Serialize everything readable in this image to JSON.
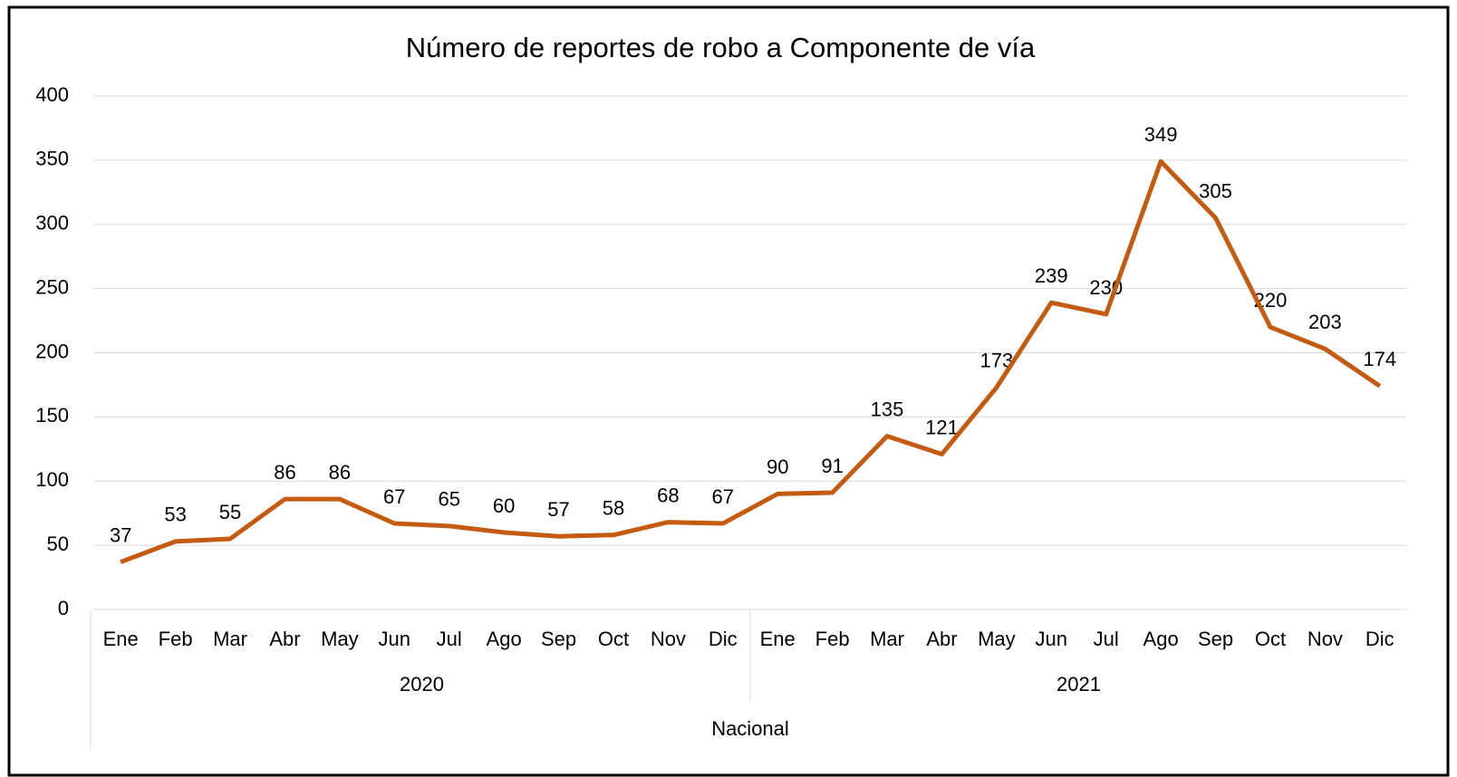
{
  "chart_data": {
    "type": "line",
    "title": "Número de reportes de robo a Componente de vía",
    "categories": [
      "Ene",
      "Feb",
      "Mar",
      "Abr",
      "May",
      "Jun",
      "Jul",
      "Ago",
      "Sep",
      "Oct",
      "Nov",
      "Dic",
      "Ene",
      "Feb",
      "Mar",
      "Abr",
      "May",
      "Jun",
      "Jul",
      "Ago",
      "Sep",
      "Oct",
      "Nov",
      "Dic"
    ],
    "category_groups": [
      "2020",
      "2021"
    ],
    "outer_group": "Nacional",
    "values": [
      37,
      53,
      55,
      86,
      86,
      67,
      65,
      60,
      57,
      58,
      68,
      67,
      90,
      91,
      135,
      121,
      173,
      239,
      230,
      349,
      305,
      220,
      203,
      174
    ],
    "color": "#c55a11",
    "ylim": [
      0,
      400
    ],
    "yticks": [
      0,
      50,
      100,
      150,
      200,
      250,
      300,
      350,
      400
    ],
    "grid": true
  }
}
